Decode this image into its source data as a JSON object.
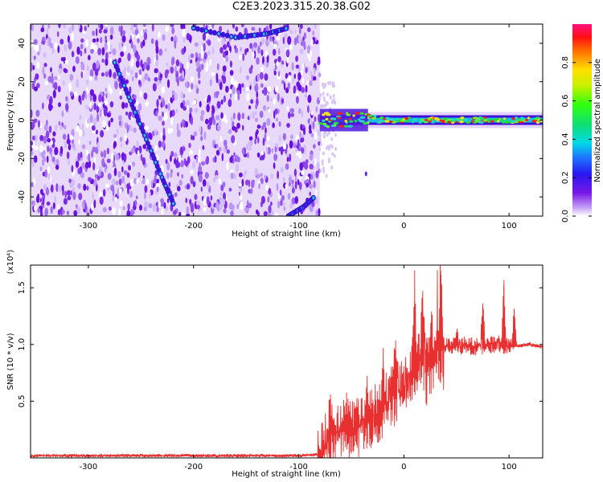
{
  "title": "C2E3.2023.315.20.38.G02",
  "chart_data": [
    {
      "type": "heatmap",
      "xlabel": "Height of straight line (km)",
      "ylabel": "Frequency (Hz)",
      "xlim": [
        -355,
        132
      ],
      "ylim": [
        -50,
        50
      ],
      "xticks": [
        -300,
        -200,
        -100,
        0,
        100
      ],
      "xtick_labels": [
        "-300",
        "-200",
        "-100",
        "0",
        "100"
      ],
      "yticks": [
        -40,
        -20,
        0,
        20,
        40
      ],
      "ytick_labels": [
        "-40",
        "-20",
        "0",
        "20",
        "40"
      ],
      "colorbar": {
        "label": "Normalized spectral amplitude",
        "range": [
          0.0,
          1.0
        ],
        "ticks": [
          0.0,
          0.2,
          0.4,
          0.6,
          0.8
        ],
        "tick_labels": [
          "0.0",
          "0.2",
          "0.4",
          "0.6",
          "0.8"
        ]
      },
      "features": {
        "noise_region_x": [
          -355,
          -80
        ],
        "carrier_frequency": 0,
        "carrier_x": [
          -80,
          132
        ],
        "descending_track": [
          [
            -275,
            30
          ],
          [
            -260,
            10
          ],
          [
            -245,
            -10
          ],
          [
            -230,
            -30
          ],
          [
            -218,
            -45
          ]
        ],
        "top_track": [
          [
            -200,
            48
          ],
          [
            -160,
            43
          ],
          [
            -130,
            45
          ],
          [
            -110,
            48
          ]
        ],
        "bottom_track": [
          [
            -110,
            -50
          ],
          [
            -95,
            -45
          ],
          [
            -85,
            -40
          ]
        ]
      }
    },
    {
      "type": "line",
      "xlabel": "Height of straight line (km)",
      "ylabel": "SNR (10 * v/v)",
      "y_multiplier": "(x10⁴)",
      "xlim": [
        -355,
        132
      ],
      "ylim": [
        0,
        1.7
      ],
      "xticks": [
        -300,
        -200,
        -100,
        0,
        100
      ],
      "xtick_labels": [
        "-300",
        "-200",
        "-100",
        "0",
        "100"
      ],
      "yticks": [
        0.5,
        1.0,
        1.5
      ],
      "ytick_labels": [
        "0.5",
        "1.0",
        "1.5"
      ],
      "series": [
        {
          "color": "#e83030",
          "x": [
            -355,
            -300,
            -200,
            -100,
            -80,
            -70,
            -60,
            -50,
            -40,
            -30,
            -20,
            -10,
            0,
            10,
            15,
            20,
            25,
            30,
            35,
            40,
            50,
            60,
            70,
            80,
            90,
            100,
            110,
            120,
            132
          ],
          "y": [
            0.02,
            0.02,
            0.02,
            0.02,
            0.03,
            0.2,
            0.25,
            0.22,
            0.3,
            0.35,
            0.45,
            0.55,
            0.6,
            0.75,
            0.9,
            0.85,
            0.8,
            0.95,
            0.98,
            0.98,
            0.99,
            0.99,
            0.98,
            1.0,
            1.0,
            0.98,
            0.99,
            1.0,
            0.98
          ]
        }
      ],
      "spikes": [
        [
          -70,
          0.45
        ],
        [
          -55,
          0.4
        ],
        [
          -35,
          0.5
        ],
        [
          -20,
          0.75
        ],
        [
          -8,
          0.9
        ],
        [
          10,
          1.32
        ],
        [
          18,
          1.28
        ],
        [
          25,
          1.05
        ],
        [
          35,
          1.65
        ],
        [
          50,
          1.1
        ],
        [
          75,
          1.35
        ],
        [
          95,
          1.52
        ],
        [
          105,
          1.3
        ]
      ]
    }
  ]
}
